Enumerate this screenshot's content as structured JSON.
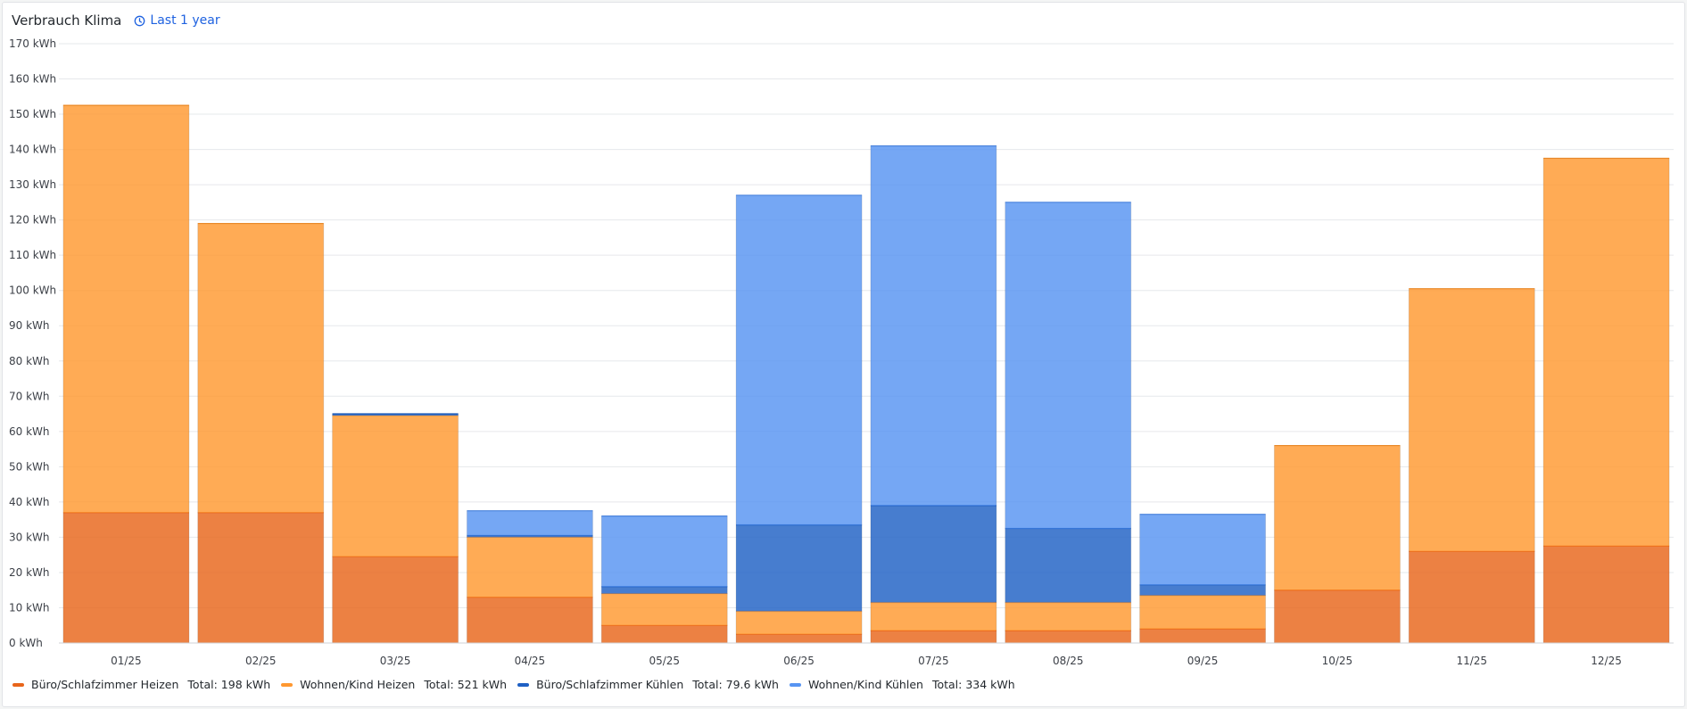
{
  "panel": {
    "title": "Verbrauch Klima",
    "time_range": "Last 1 year",
    "time_icon": "clock-icon"
  },
  "chart_data": {
    "type": "bar",
    "stacked": true,
    "categories": [
      "01/25",
      "02/25",
      "03/25",
      "04/25",
      "05/25",
      "06/25",
      "07/25",
      "08/25",
      "09/25",
      "10/25",
      "11/25",
      "12/25"
    ],
    "ylim": [
      0,
      170
    ],
    "yticks": [
      0,
      10,
      20,
      30,
      40,
      50,
      60,
      70,
      80,
      90,
      100,
      110,
      120,
      130,
      140,
      150,
      160,
      170
    ],
    "yunit": "kWh",
    "grid": true,
    "legend_position": "bottom-left",
    "total_label": "Total:",
    "series": [
      {
        "name": "Büro/Schlafzimmer Heizen",
        "color": "#e8651a",
        "total": "198 kWh",
        "values": [
          37,
          37,
          24.5,
          13,
          5,
          2.5,
          3.5,
          3.5,
          4,
          15,
          26,
          27.5
        ]
      },
      {
        "name": "Wohnen/Kind Heizen",
        "color": "#ff9830",
        "total": "521 kWh",
        "values": [
          115.5,
          82,
          40,
          17,
          9,
          6.5,
          8,
          8,
          9.5,
          41,
          74.5,
          110
        ]
      },
      {
        "name": "Büro/Schlafzimmer Kühlen",
        "color": "#1f60c4",
        "total": "79.6 kWh",
        "values": [
          0,
          0,
          0.5,
          0.5,
          2,
          24.5,
          27.5,
          21,
          3,
          0,
          0,
          0
        ]
      },
      {
        "name": "Wohnen/Kind Kühlen",
        "color": "#5794f2",
        "total": "334 kWh",
        "values": [
          0,
          0,
          0,
          7,
          20,
          93.5,
          102,
          92.5,
          20,
          0,
          0,
          0
        ]
      }
    ]
  }
}
